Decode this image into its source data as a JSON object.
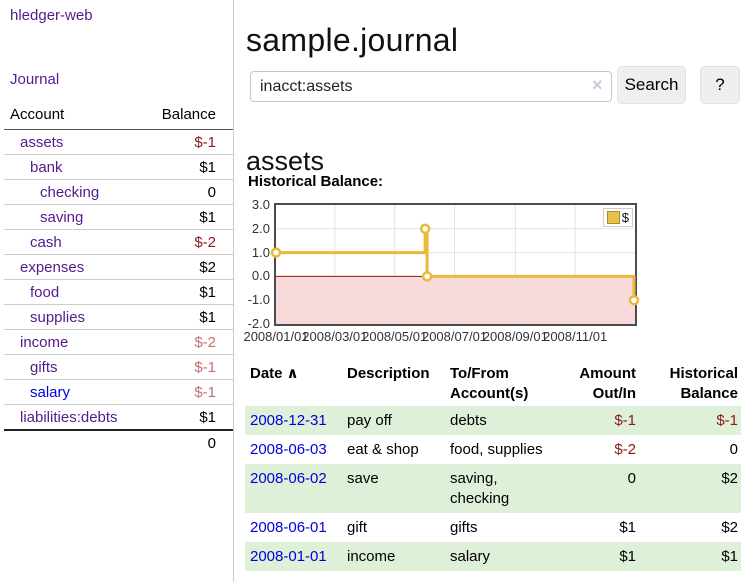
{
  "colors": {
    "link_purple": "#551a8b",
    "link_blue": "#0000dd",
    "negative_strong": "#8b1a1a",
    "negative_soft": "#c07272",
    "row_green": "#dff0d8",
    "chart_line_gold": "#e9ba37",
    "chart_negative_fill": "#f9dada",
    "chart_zero_line": "#991111",
    "grid_line": "#e3e3e3"
  },
  "sidebar": {
    "brand": "hledger-web",
    "journal_link": "Journal",
    "accounts": {
      "header": {
        "account": "Account",
        "balance": "Balance"
      },
      "rows": [
        {
          "name": "assets",
          "balance": "$-1",
          "indent": 1,
          "bold": true,
          "name_color": "purple",
          "balance_color": "negative"
        },
        {
          "name": "bank",
          "balance": "$1",
          "indent": 2,
          "bold": true,
          "name_color": "purple",
          "balance_color": "normal"
        },
        {
          "name": "checking",
          "balance": "0",
          "indent": 3,
          "bold": true,
          "name_color": "purple",
          "balance_color": "normal"
        },
        {
          "name": "saving",
          "balance": "$1",
          "indent": 3,
          "bold": true,
          "name_color": "purple",
          "balance_color": "normal"
        },
        {
          "name": "cash",
          "balance": "$-2",
          "indent": 2,
          "bold": true,
          "name_color": "purple",
          "balance_color": "negative"
        },
        {
          "name": "expenses",
          "balance": "$2",
          "indent": 1,
          "bold": false,
          "name_color": "purple",
          "balance_color": "normal"
        },
        {
          "name": "food",
          "balance": "$1",
          "indent": 2,
          "bold": false,
          "name_color": "purple",
          "balance_color": "normal"
        },
        {
          "name": "supplies",
          "balance": "$1",
          "indent": 2,
          "bold": false,
          "name_color": "purple",
          "balance_color": "normal"
        },
        {
          "name": "income",
          "balance": "$-2",
          "indent": 1,
          "bold": false,
          "name_color": "purple",
          "balance_color": "negative_soft"
        },
        {
          "name": "gifts",
          "balance": "$-1",
          "indent": 2,
          "bold": false,
          "name_color": "purple",
          "balance_color": "negative_soft"
        },
        {
          "name": "salary",
          "balance": "$-1",
          "indent": 2,
          "bold": false,
          "name_color": "blue",
          "balance_color": "negative_soft"
        },
        {
          "name": "liabilities:debts",
          "balance": "$1",
          "indent": 1,
          "bold": false,
          "name_color": "purple",
          "balance_color": "normal"
        }
      ],
      "total": "0"
    }
  },
  "main": {
    "title": "sample.journal",
    "search": {
      "value": "inacct:assets",
      "clear_icon": "×",
      "search_button": "Search",
      "help_button": "?"
    },
    "account_heading": "assets",
    "chart_heading": "Historical Balance:",
    "register_table": {
      "headers": {
        "date": "Date",
        "sort_indicator": "∧",
        "description": "Description",
        "accounts": "To/From Account(s)",
        "amount": "Amount Out/In",
        "balance": "Historical Balance"
      },
      "rows": [
        {
          "date": "2008-12-31",
          "description": "pay off",
          "accounts": "debts",
          "amount": "$-1",
          "balance": "$-1",
          "amount_negative": true,
          "balance_negative": true
        },
        {
          "date": "2008-06-03",
          "description": "eat & shop",
          "accounts": "food, supplies",
          "amount": "$-2",
          "balance": "0",
          "amount_negative": true,
          "balance_negative": false
        },
        {
          "date": "2008-06-02",
          "description": "save",
          "accounts": "saving,\nchecking",
          "amount": "0",
          "balance": "$2",
          "amount_negative": false,
          "balance_negative": false
        },
        {
          "date": "2008-06-01",
          "description": "gift",
          "accounts": "gifts",
          "amount": "$1",
          "balance": "$2",
          "amount_negative": false,
          "balance_negative": false
        },
        {
          "date": "2008-01-01",
          "description": "income",
          "accounts": "salary",
          "amount": "$1",
          "balance": "$1",
          "amount_negative": false,
          "balance_negative": false
        }
      ]
    }
  },
  "chart_data": {
    "type": "line",
    "subtype": "step-after",
    "title": "Historical Balance:",
    "series": [
      {
        "name": "$",
        "points": [
          [
            "2008-01-01",
            1
          ],
          [
            "2008-06-01",
            2
          ],
          [
            "2008-06-03",
            0
          ],
          [
            "2008-12-31",
            -1
          ]
        ]
      }
    ],
    "x_range": [
      "2008-01-01",
      "2009-01-01"
    ],
    "x_ticks": [
      "2008/01/01",
      "2008/03/01",
      "2008/05/01",
      "2008/07/01",
      "2008/09/01",
      "2008/11/01"
    ],
    "y_ticks": [
      "3.0",
      "2.0",
      "1.0",
      "0.0",
      "-1.0",
      "-2.0"
    ],
    "ylim": [
      -2,
      3
    ],
    "grid": true,
    "legend": {
      "label": "$",
      "position": "top-right"
    },
    "negative_region_shaded": true
  }
}
